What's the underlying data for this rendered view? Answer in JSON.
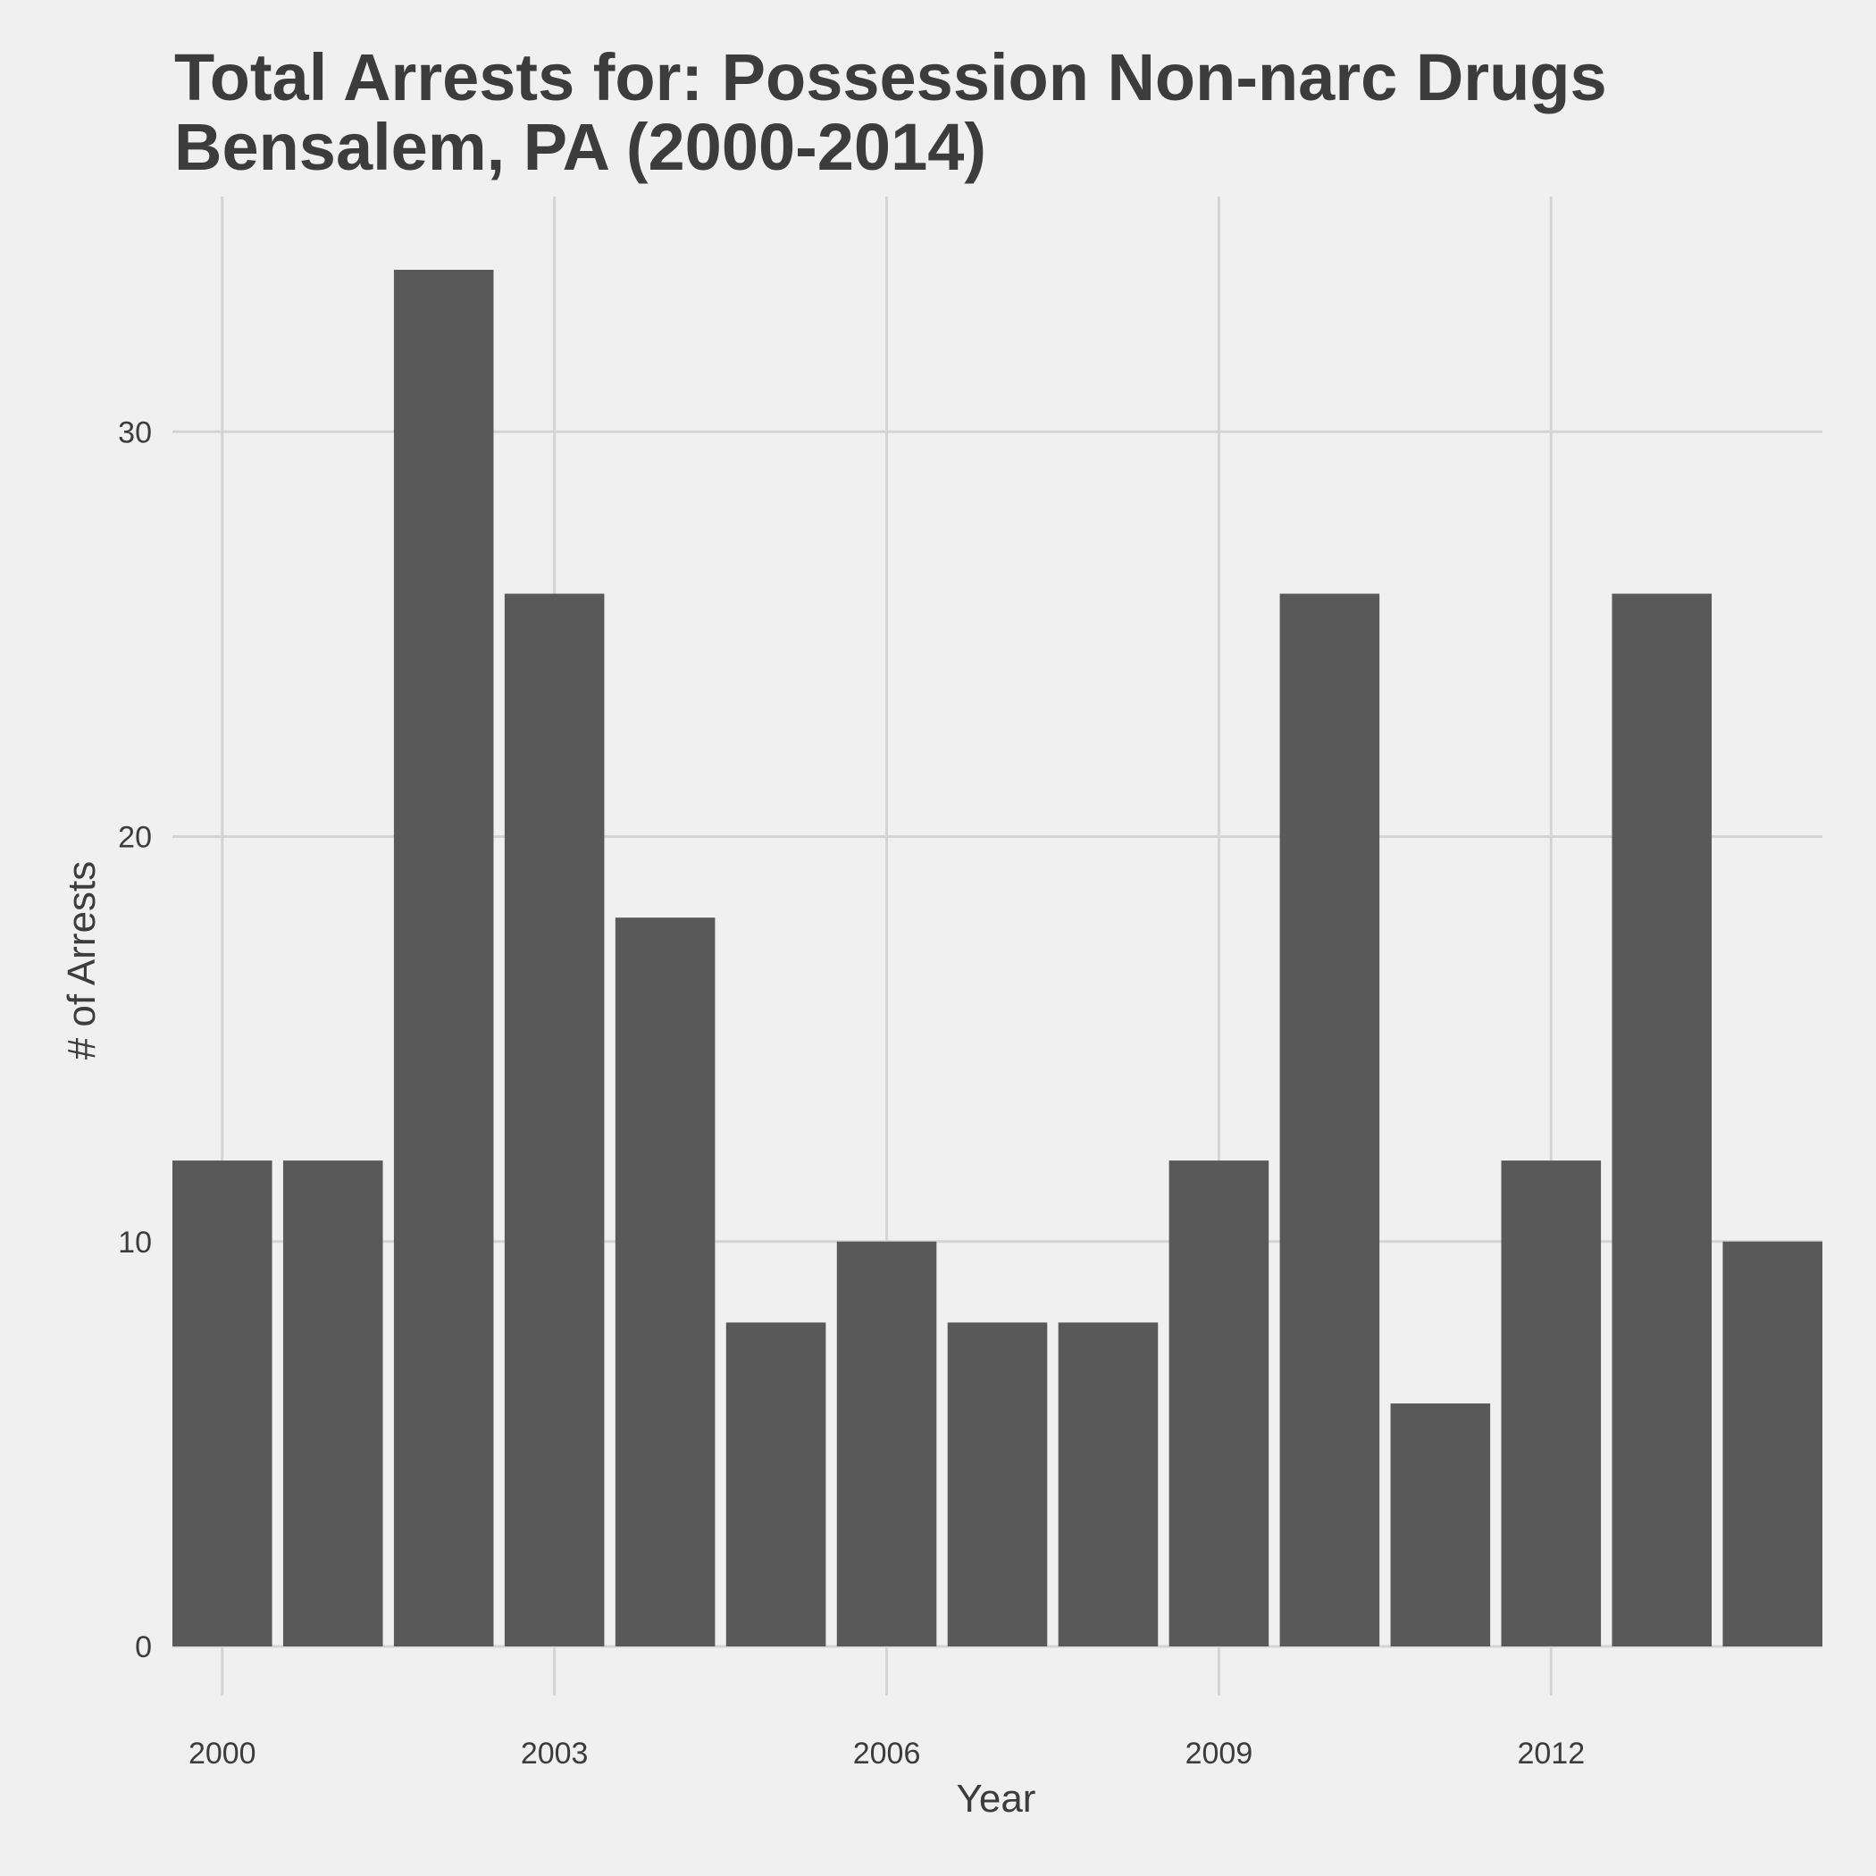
{
  "chart_data": {
    "type": "bar",
    "title": "Total Arrests for: Possession Non-narc Drugs",
    "subtitle": "Bensalem, PA (2000-2014)",
    "xlabel": "Year",
    "ylabel": "# of Arrests",
    "x": [
      2000,
      2001,
      2002,
      2003,
      2004,
      2005,
      2006,
      2007,
      2008,
      2009,
      2010,
      2011,
      2012,
      2013,
      2014
    ],
    "values": [
      12,
      12,
      34,
      26,
      18,
      8,
      10,
      8,
      8,
      12,
      26,
      6,
      12,
      26,
      10
    ],
    "xlim": [
      1999.55,
      2014.45
    ],
    "ylim": [
      0,
      34
    ],
    "x_ticks": [
      2000,
      2003,
      2006,
      2009,
      2012
    ],
    "y_ticks": [
      0,
      10,
      20,
      30
    ],
    "grid": true,
    "legend": "none",
    "colors": {
      "bar": "#595959",
      "grid": "#d4d4d4",
      "background": "#f0f0f0",
      "text": "#3c3c3c"
    }
  }
}
